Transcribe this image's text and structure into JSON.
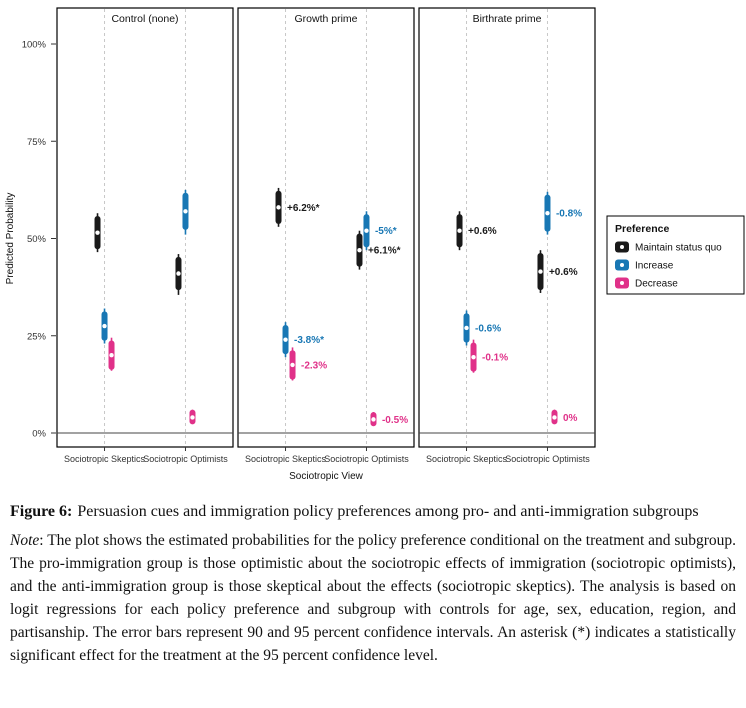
{
  "figure": {
    "caption_label": "Figure 6:",
    "caption_text": "Persuasion cues and immigration policy preferences among pro- and anti-immigration subgroups",
    "note_prefix": "Note",
    "note_text": ": The plot shows the estimated probabilities for the policy preference conditional on the treatment and subgroup. The pro-immigration group is those optimistic about the sociotropic effects of immigration (sociotropic optimists), and the anti-immigration group is those skeptical about the effects (sociotropic skeptics). The analysis is based on logit regressions for each policy preference and subgroup with controls for age, sex, education, region, and partisanship. The error bars represent 90 and 95 percent confidence intervals. An asterisk (*) indicates a statistically significant effect for the treatment at the 95 percent confidence level."
  },
  "chart_data": {
    "type": "scatter",
    "title": "",
    "facets": [
      "Control (none)",
      "Growth prime",
      "Birthrate prime"
    ],
    "x_categories": [
      "Sociotropic Skeptics",
      "Sociotropic Optimists"
    ],
    "xlabel": "Sociotropic View",
    "ylabel": "Predicted Probability",
    "ylim": [
      0,
      100
    ],
    "ytick_labels": [
      "0%",
      "25%",
      "50%",
      "75%",
      "100%"
    ],
    "ytick_values": [
      0,
      25,
      50,
      75,
      100
    ],
    "legend_title": "Preference",
    "legend_position": "right",
    "grid": "dashed-vertical-at-categories",
    "series": [
      {
        "name": "Maintain status quo",
        "color": "#1a1a1a",
        "dodge": -7,
        "points": [
          {
            "facet": 0,
            "cat": 0,
            "est": 51.5,
            "ci90": [
              48,
              55
            ],
            "ci95": [
              46.5,
              56.5
            ],
            "label": ""
          },
          {
            "facet": 0,
            "cat": 1,
            "est": 41,
            "ci90": [
              37.5,
              44.5
            ],
            "ci95": [
              35.5,
              46
            ],
            "label": ""
          },
          {
            "facet": 1,
            "cat": 0,
            "est": 58,
            "ci90": [
              54.5,
              61.5
            ],
            "ci95": [
              53,
              63
            ],
            "label": "+6.2%*"
          },
          {
            "facet": 1,
            "cat": 1,
            "est": 47,
            "ci90": [
              43.5,
              50.5
            ],
            "ci95": [
              42,
              52
            ],
            "label": "+6.1%*"
          },
          {
            "facet": 2,
            "cat": 0,
            "est": 52,
            "ci90": [
              48.5,
              55.5
            ],
            "ci95": [
              47,
              57
            ],
            "label": "+0.6%"
          },
          {
            "facet": 2,
            "cat": 1,
            "est": 41.5,
            "ci90": [
              37.5,
              45.5
            ],
            "ci95": [
              36,
              47
            ],
            "label": "+0.6%"
          }
        ]
      },
      {
        "name": "Increase",
        "color": "#1877b4",
        "dodge": 0,
        "points": [
          {
            "facet": 0,
            "cat": 0,
            "est": 27.5,
            "ci90": [
              24.5,
              30.5
            ],
            "ci95": [
              23,
              32
            ],
            "label": ""
          },
          {
            "facet": 0,
            "cat": 1,
            "est": 57,
            "ci90": [
              53,
              61
            ],
            "ci95": [
              51,
              62.5
            ],
            "label": ""
          },
          {
            "facet": 1,
            "cat": 0,
            "est": 24,
            "ci90": [
              21,
              27
            ],
            "ci95": [
              19.5,
              28.5
            ],
            "label": "-3.8%*"
          },
          {
            "facet": 1,
            "cat": 1,
            "est": 52,
            "ci90": [
              48.5,
              55.5
            ],
            "ci95": [
              47,
              57
            ],
            "label": "-5%*"
          },
          {
            "facet": 2,
            "cat": 0,
            "est": 27,
            "ci90": [
              24,
              30
            ],
            "ci95": [
              22.5,
              31.5
            ],
            "label": "-0.6%"
          },
          {
            "facet": 2,
            "cat": 1,
            "est": 56.5,
            "ci90": [
              52.5,
              60.5
            ],
            "ci95": [
              51,
              62
            ],
            "label": "-0.8%"
          }
        ]
      },
      {
        "name": "Decrease",
        "color": "#e03189",
        "dodge": 7,
        "points": [
          {
            "facet": 0,
            "cat": 0,
            "est": 20,
            "ci90": [
              17,
              23
            ],
            "ci95": [
              16,
              24.5
            ],
            "label": ""
          },
          {
            "facet": 0,
            "cat": 1,
            "est": 4,
            "ci90": [
              3,
              5.2
            ],
            "ci95": [
              2.5,
              6
            ],
            "label": ""
          },
          {
            "facet": 1,
            "cat": 0,
            "est": 17.5,
            "ci90": [
              14.5,
              20.5
            ],
            "ci95": [
              13.5,
              22
            ],
            "label": "-2.3%"
          },
          {
            "facet": 1,
            "cat": 1,
            "est": 3.5,
            "ci90": [
              2.5,
              4.6
            ],
            "ci95": [
              2,
              5.4
            ],
            "label": "-0.5%"
          },
          {
            "facet": 2,
            "cat": 0,
            "est": 19.5,
            "ci90": [
              16.5,
              22.5
            ],
            "ci95": [
              15.5,
              24
            ],
            "label": "-0.1%"
          },
          {
            "facet": 2,
            "cat": 1,
            "est": 4,
            "ci90": [
              3,
              5.2
            ],
            "ci95": [
              2.5,
              6
            ],
            "label": "0%"
          }
        ]
      }
    ]
  }
}
